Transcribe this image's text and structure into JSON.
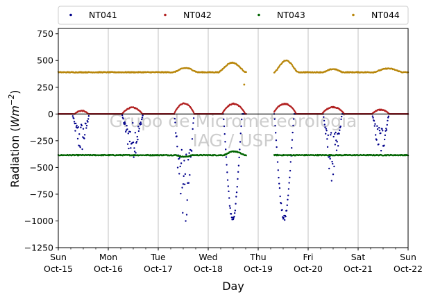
{
  "chart_data": {
    "type": "scatter",
    "xlabel": "Day",
    "ylabel": "Radiation (Wm^-2)",
    "ylabel_prefix": "Radiation (",
    "ylabel_unit": "Wm",
    "ylabel_exp": "−2",
    "ylabel_suffix": ")",
    "ylim": [
      -1250,
      800
    ],
    "yticks": [
      -1250,
      -1000,
      -750,
      -500,
      -250,
      0,
      250,
      500,
      750
    ],
    "ytick_labels": [
      "−1250",
      "−1000",
      "−750",
      "−500",
      "−250",
      "0",
      "250",
      "500",
      "750"
    ],
    "xlim_days": [
      0,
      7
    ],
    "xticks": [
      {
        "day": 0,
        "line1": "Sun",
        "line2": "Oct-15"
      },
      {
        "day": 1,
        "line1": "Mon",
        "line2": "Oct-16"
      },
      {
        "day": 2,
        "line1": "Tue",
        "line2": "Oct-17"
      },
      {
        "day": 3,
        "line1": "Wed",
        "line2": "Oct-18"
      },
      {
        "day": 4,
        "line1": "Thu",
        "line2": "Oct-19"
      },
      {
        "day": 5,
        "line1": "Fri",
        "line2": "Oct-20"
      },
      {
        "day": 6,
        "line1": "Sat",
        "line2": "Oct-21"
      },
      {
        "day": 7,
        "line1": "Sun",
        "line2": "Oct-22"
      }
    ],
    "grid": "vertical",
    "zero_line": true,
    "legend_position": "top",
    "gap_days": [
      3.76,
      4.32
    ],
    "series": [
      {
        "name": "NT041",
        "color": "#00008b",
        "baseline": 0,
        "segments": [
          {
            "d0": 0.28,
            "d1": 0.62,
            "min": -380,
            "ragged": 0.85
          },
          {
            "d0": 1.27,
            "d1": 1.7,
            "min": -420,
            "ragged": 0.85
          },
          {
            "d0": 2.32,
            "d1": 2.72,
            "min": -1100,
            "ragged": 0.7
          },
          {
            "d0": 3.3,
            "d1": 3.68,
            "min": -1010,
            "ragged": 0.06
          },
          {
            "d0": 4.32,
            "d1": 4.72,
            "min": -1010,
            "ragged": 0.06
          },
          {
            "d0": 5.3,
            "d1": 5.68,
            "min": -650,
            "ragged": 0.75
          },
          {
            "d0": 6.28,
            "d1": 6.62,
            "min": -410,
            "ragged": 0.8
          }
        ]
      },
      {
        "name": "NT042",
        "color": "#b22222",
        "baseline": 0,
        "segments": [
          {
            "d0": 0.33,
            "d1": 0.6,
            "max": 30
          },
          {
            "d0": 1.28,
            "d1": 1.68,
            "max": 60
          },
          {
            "d0": 2.32,
            "d1": 2.72,
            "max": 100
          },
          {
            "d0": 3.28,
            "d1": 3.74,
            "max": 95
          },
          {
            "d0": 4.3,
            "d1": 4.76,
            "max": 95
          },
          {
            "d0": 5.28,
            "d1": 5.72,
            "max": 65
          },
          {
            "d0": 6.28,
            "d1": 6.62,
            "max": 40
          }
        ]
      },
      {
        "name": "NT043",
        "color": "#006400",
        "baseline": -385,
        "segments": [
          {
            "d0": 3.3,
            "d1": 3.74,
            "delta": 35
          },
          {
            "d0": 2.35,
            "d1": 2.7,
            "delta": -15
          }
        ]
      },
      {
        "name": "NT044",
        "color": "#b8860b",
        "baseline": 390,
        "segments": [
          {
            "d0": 2.3,
            "d1": 2.8,
            "delta": 40
          },
          {
            "d0": 3.2,
            "d1": 3.76,
            "delta": 90
          },
          {
            "d0": 4.32,
            "d1": 4.8,
            "delta": 110
          },
          {
            "d0": 5.3,
            "d1": 5.7,
            "delta": 30
          },
          {
            "d0": 6.3,
            "d1": 6.9,
            "delta": 35
          }
        ],
        "outliers": [
          {
            "day": 3.72,
            "value": 275
          }
        ]
      }
    ]
  },
  "watermark": {
    "line1": "Grupo de Micrometeorologia",
    "line2": "IAG / USP"
  }
}
